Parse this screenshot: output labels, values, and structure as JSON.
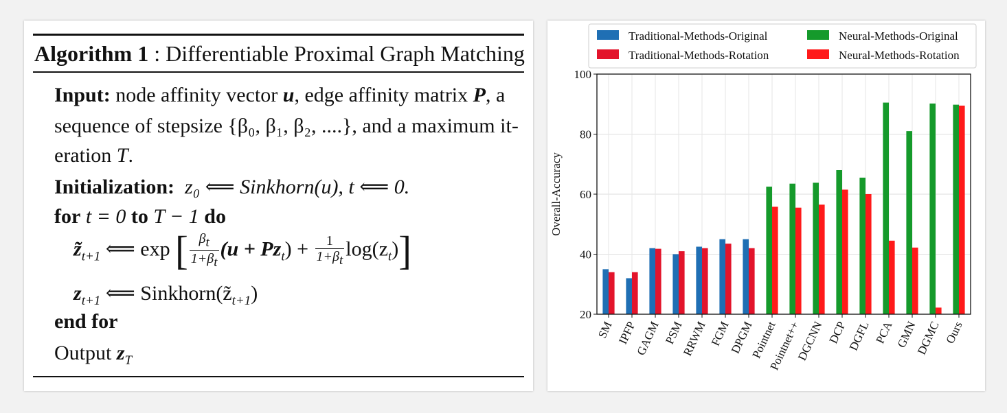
{
  "algorithm": {
    "label": "Algorithm 1",
    "colon": ":",
    "title": "Differentiable Proximal Graph Matching",
    "input_kw": "Input:",
    "input_text_1": "node affinity vector",
    "input_var_u": "u",
    "input_text_2": ", edge affinity matrix",
    "input_var_P": "P",
    "input_text_3": ", a",
    "input_line2": "sequence of stepsize {β₀, β₁, β₂, ....}, and a maximum it-",
    "input_line3_a": "eration",
    "input_line3_T": "T",
    "input_line3_b": ".",
    "init_kw": "Initialization:",
    "init_expr": "z₀ ⟸ Sinkhorn(u), t ⟸ 0.",
    "for_kw": "for",
    "for_expr": "t = 0",
    "to_kw": "to",
    "to_expr": "T − 1",
    "do_kw": "do",
    "step1_lhs": "z̃",
    "step1_lhs_sub": "t+1",
    "step1_arrow": "⟸ exp",
    "frac1_num": "β",
    "frac1_num_sub": "t",
    "frac1_den": "1+β",
    "frac1_den_sub": "t",
    "step1_mid": "(u + Pz",
    "step1_mid_sub": "t",
    "step1_mid_end": ") +",
    "frac2_num": "1",
    "frac2_den": "1+β",
    "frac2_den_sub": "t",
    "step1_log": "log(z",
    "step1_log_sub": "t",
    "step1_log_end": ")",
    "step2_lhs": "z",
    "step2_lhs_sub": "t+1",
    "step2_rhs": "⟸ Sinkhorn(z̃",
    "step2_rhs_sub": "t+1",
    "step2_end": ")",
    "end_kw": "end for",
    "output_text": "Output",
    "output_var": "z",
    "output_sub": "T"
  },
  "chart_data": {
    "type": "bar",
    "ylabel": "Overall-Accuracy",
    "ylim": [
      20,
      100
    ],
    "yticks": [
      20,
      40,
      60,
      80,
      100
    ],
    "grid": true,
    "legend_placement": "top",
    "categories": [
      "SM",
      "IPFP",
      "GAGM",
      "PSM",
      "RRWM",
      "FGM",
      "DPGM",
      "Pointnet",
      "Pointnet++",
      "DGCNN",
      "DCP",
      "DGFL",
      "PCA",
      "GMN",
      "DGMC",
      "Ours"
    ],
    "series": [
      {
        "name": "Traditional-Methods-Original",
        "color": "#1f6fb4",
        "values": [
          35,
          32,
          42,
          40,
          42.5,
          45,
          45,
          null,
          null,
          null,
          null,
          null,
          null,
          null,
          null,
          null
        ]
      },
      {
        "name": "Traditional-Methods-Rotation",
        "color": "#e3142b",
        "values": [
          34,
          34,
          41.8,
          41,
          42,
          43.5,
          42,
          null,
          null,
          null,
          null,
          null,
          null,
          null,
          null,
          null
        ]
      },
      {
        "name": "Neural-Methods-Original",
        "color": "#159a2b",
        "values": [
          null,
          null,
          null,
          null,
          null,
          null,
          null,
          62.5,
          63.5,
          63.8,
          68,
          65.5,
          90.5,
          81,
          90.2,
          89.8
        ]
      },
      {
        "name": "Neural-Methods-Rotation",
        "color": "#ff1a1a",
        "values": [
          null,
          null,
          null,
          null,
          null,
          null,
          null,
          55.8,
          55.5,
          56.5,
          61.5,
          60,
          44.5,
          42.2,
          22.2,
          89.5
        ]
      }
    ]
  }
}
